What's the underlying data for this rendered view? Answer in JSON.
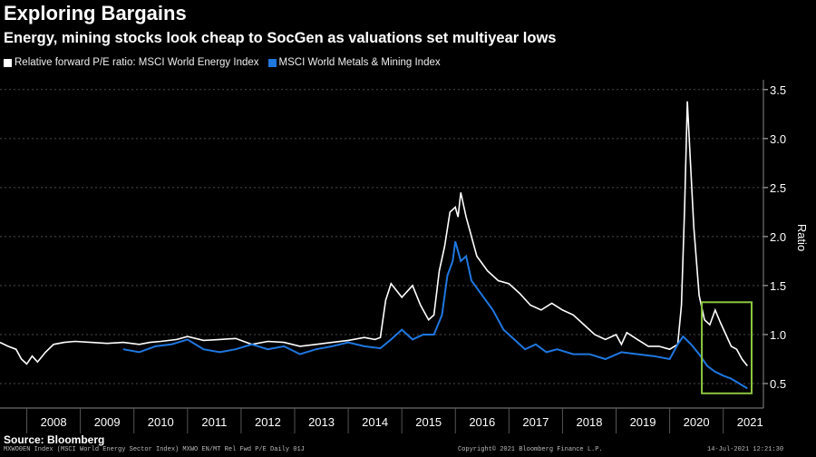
{
  "title": "Exploring Bargains",
  "subtitle": "Energy, mining stocks look cheap to SocGen as valuations set multiyear lows",
  "legend": [
    {
      "label": "Relative forward P/E ratio: MSCI World Energy Index",
      "color": "#ffffff"
    },
    {
      "label": "MSCI World Metals & Mining Index",
      "color": "#1f77e0"
    }
  ],
  "source": "Source: Bloomberg",
  "footer": {
    "left": "MXWO0EN Index (MSCI World Energy Sector Index) MXWO EN/MT Rel Fwd P/E  Daily 01J",
    "center": "Copyright© 2021 Bloomberg Finance L.P.",
    "right": "14-Jul-2021 12:21:30"
  },
  "colors": {
    "background": "#000000",
    "energy": "#ffffff",
    "mining": "#1f77e0",
    "highlight_box": "#8cc63f"
  },
  "chart_data": {
    "type": "line",
    "title": "Exploring Bargains",
    "subtitle": "Energy, mining stocks look cheap to SocGen as valuations set multiyear lows",
    "xlabel": "",
    "ylabel": "Ratio",
    "x_ticks": [
      "2008",
      "2009",
      "2010",
      "2011",
      "2012",
      "2013",
      "2014",
      "2015",
      "2016",
      "2017",
      "2018",
      "2019",
      "2020",
      "2021"
    ],
    "y_ticks": [
      0.5,
      1.0,
      1.5,
      2.0,
      2.5,
      3.0,
      3.5
    ],
    "y_tick_labels": [
      "0.5",
      "1.0",
      "1.5",
      "2.0",
      "2.5",
      "3.0",
      "3.5"
    ],
    "xlim": [
      2007.5,
      2021.75
    ],
    "ylim": [
      0.25,
      3.6
    ],
    "grid": "horizontal dotted",
    "legend_position": "top-left",
    "highlight": {
      "x": [
        2020.6,
        2021.53
      ],
      "y": [
        0.4,
        1.33
      ]
    },
    "series": [
      {
        "name": "Relative forward P/E ratio: MSCI World Energy Index",
        "color": "#ffffff",
        "points": [
          [
            2007.5,
            0.92
          ],
          [
            2007.65,
            0.88
          ],
          [
            2007.8,
            0.85
          ],
          [
            2007.9,
            0.75
          ],
          [
            2008.0,
            0.7
          ],
          [
            2008.1,
            0.78
          ],
          [
            2008.2,
            0.72
          ],
          [
            2008.35,
            0.82
          ],
          [
            2008.5,
            0.9
          ],
          [
            2008.7,
            0.92
          ],
          [
            2008.9,
            0.93
          ],
          [
            2009.2,
            0.92
          ],
          [
            2009.5,
            0.91
          ],
          [
            2009.8,
            0.92
          ],
          [
            2010.1,
            0.9
          ],
          [
            2010.3,
            0.92
          ],
          [
            2010.5,
            0.93
          ],
          [
            2010.8,
            0.95
          ],
          [
            2011.0,
            0.98
          ],
          [
            2011.3,
            0.94
          ],
          [
            2011.6,
            0.95
          ],
          [
            2011.9,
            0.96
          ],
          [
            2012.2,
            0.9
          ],
          [
            2012.5,
            0.93
          ],
          [
            2012.8,
            0.92
          ],
          [
            2013.1,
            0.88
          ],
          [
            2013.4,
            0.9
          ],
          [
            2013.7,
            0.92
          ],
          [
            2014.0,
            0.94
          ],
          [
            2014.3,
            0.97
          ],
          [
            2014.5,
            0.95
          ],
          [
            2014.6,
            0.97
          ],
          [
            2014.7,
            1.35
          ],
          [
            2014.8,
            1.52
          ],
          [
            2014.9,
            1.45
          ],
          [
            2015.0,
            1.38
          ],
          [
            2015.2,
            1.5
          ],
          [
            2015.35,
            1.3
          ],
          [
            2015.5,
            1.15
          ],
          [
            2015.6,
            1.2
          ],
          [
            2015.7,
            1.65
          ],
          [
            2015.8,
            1.9
          ],
          [
            2015.9,
            2.25
          ],
          [
            2016.0,
            2.3
          ],
          [
            2016.05,
            2.2
          ],
          [
            2016.1,
            2.45
          ],
          [
            2016.2,
            2.2
          ],
          [
            2016.3,
            2.0
          ],
          [
            2016.4,
            1.8
          ],
          [
            2016.6,
            1.65
          ],
          [
            2016.8,
            1.55
          ],
          [
            2017.0,
            1.52
          ],
          [
            2017.2,
            1.42
          ],
          [
            2017.4,
            1.3
          ],
          [
            2017.6,
            1.25
          ],
          [
            2017.8,
            1.32
          ],
          [
            2018.0,
            1.25
          ],
          [
            2018.2,
            1.2
          ],
          [
            2018.4,
            1.1
          ],
          [
            2018.6,
            1.0
          ],
          [
            2018.8,
            0.95
          ],
          [
            2019.0,
            1.0
          ],
          [
            2019.1,
            0.9
          ],
          [
            2019.2,
            1.02
          ],
          [
            2019.4,
            0.95
          ],
          [
            2019.6,
            0.88
          ],
          [
            2019.8,
            0.88
          ],
          [
            2020.0,
            0.85
          ],
          [
            2020.15,
            0.9
          ],
          [
            2020.22,
            1.3
          ],
          [
            2020.28,
            2.3
          ],
          [
            2020.33,
            3.38
          ],
          [
            2020.38,
            2.85
          ],
          [
            2020.45,
            2.1
          ],
          [
            2020.55,
            1.4
          ],
          [
            2020.65,
            1.15
          ],
          [
            2020.75,
            1.1
          ],
          [
            2020.85,
            1.25
          ],
          [
            2020.95,
            1.12
          ],
          [
            2021.05,
            1.0
          ],
          [
            2021.15,
            0.88
          ],
          [
            2021.25,
            0.85
          ],
          [
            2021.35,
            0.75
          ],
          [
            2021.45,
            0.68
          ]
        ]
      },
      {
        "name": "MSCI World Metals & Mining Index",
        "color": "#1f77e0",
        "points": [
          [
            2009.8,
            0.85
          ],
          [
            2010.1,
            0.82
          ],
          [
            2010.4,
            0.88
          ],
          [
            2010.7,
            0.9
          ],
          [
            2011.0,
            0.95
          ],
          [
            2011.3,
            0.85
          ],
          [
            2011.6,
            0.82
          ],
          [
            2011.9,
            0.85
          ],
          [
            2012.2,
            0.9
          ],
          [
            2012.5,
            0.85
          ],
          [
            2012.8,
            0.88
          ],
          [
            2013.1,
            0.8
          ],
          [
            2013.4,
            0.85
          ],
          [
            2013.7,
            0.88
          ],
          [
            2014.0,
            0.92
          ],
          [
            2014.3,
            0.88
          ],
          [
            2014.6,
            0.86
          ],
          [
            2014.8,
            0.95
          ],
          [
            2015.0,
            1.05
          ],
          [
            2015.2,
            0.95
          ],
          [
            2015.4,
            1.0
          ],
          [
            2015.6,
            1.0
          ],
          [
            2015.75,
            1.2
          ],
          [
            2015.85,
            1.6
          ],
          [
            2015.95,
            1.75
          ],
          [
            2016.0,
            1.95
          ],
          [
            2016.1,
            1.75
          ],
          [
            2016.2,
            1.8
          ],
          [
            2016.3,
            1.55
          ],
          [
            2016.5,
            1.4
          ],
          [
            2016.7,
            1.25
          ],
          [
            2016.9,
            1.05
          ],
          [
            2017.1,
            0.95
          ],
          [
            2017.3,
            0.85
          ],
          [
            2017.5,
            0.9
          ],
          [
            2017.7,
            0.82
          ],
          [
            2017.9,
            0.85
          ],
          [
            2018.2,
            0.8
          ],
          [
            2018.5,
            0.8
          ],
          [
            2018.8,
            0.75
          ],
          [
            2019.1,
            0.82
          ],
          [
            2019.4,
            0.8
          ],
          [
            2019.7,
            0.78
          ],
          [
            2020.0,
            0.75
          ],
          [
            2020.15,
            0.9
          ],
          [
            2020.25,
            0.98
          ],
          [
            2020.4,
            0.9
          ],
          [
            2020.55,
            0.8
          ],
          [
            2020.7,
            0.68
          ],
          [
            2020.85,
            0.62
          ],
          [
            2021.0,
            0.58
          ],
          [
            2021.15,
            0.55
          ],
          [
            2021.3,
            0.5
          ],
          [
            2021.45,
            0.45
          ]
        ]
      }
    ]
  }
}
